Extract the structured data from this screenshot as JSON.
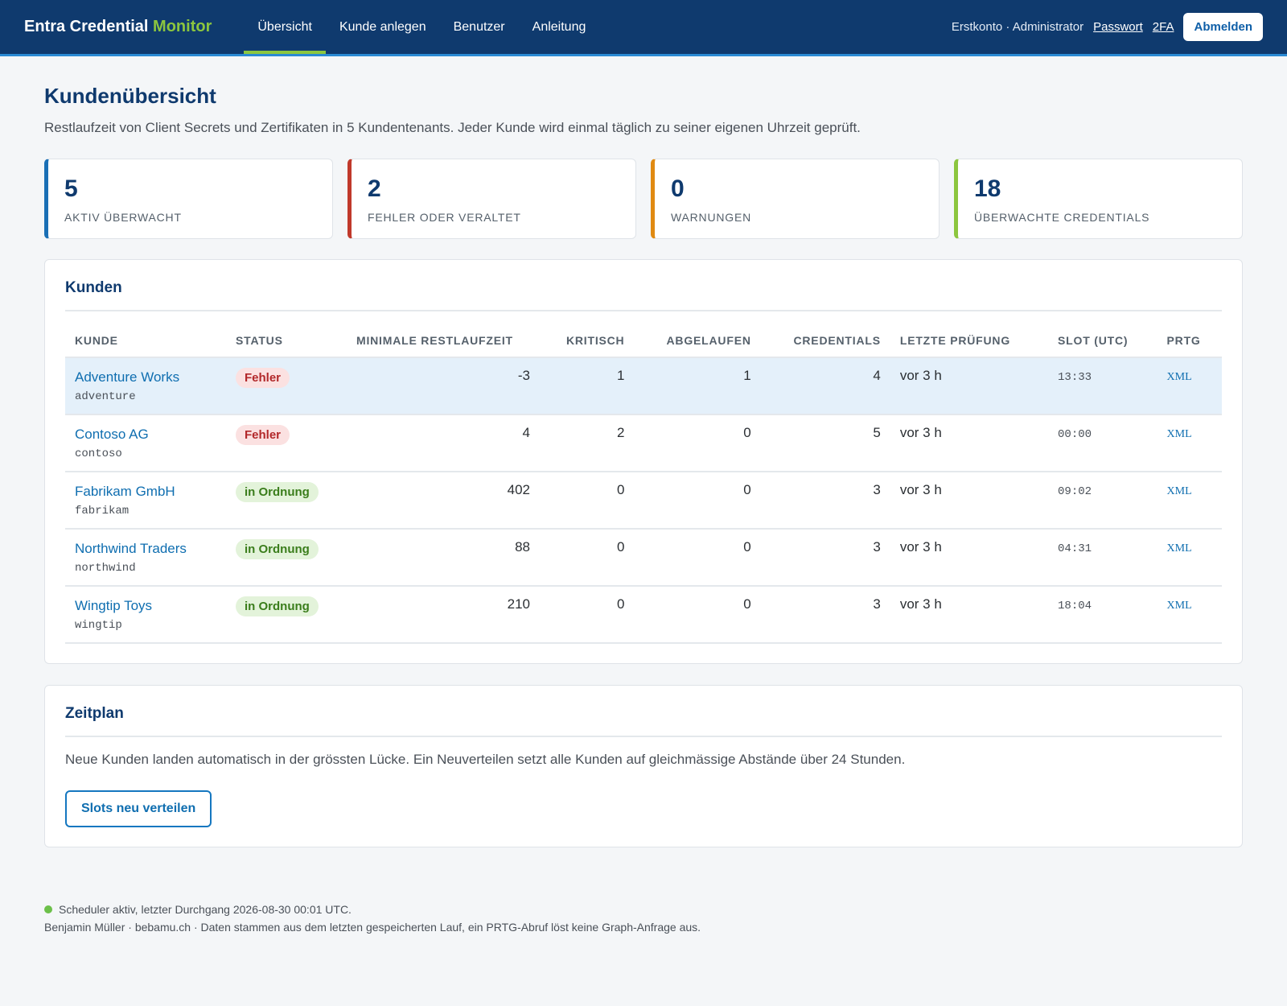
{
  "header": {
    "brand_main": "Entra Credential",
    "brand_accent": "Monitor",
    "nav": [
      {
        "label": "Übersicht",
        "active": true
      },
      {
        "label": "Kunde anlegen"
      },
      {
        "label": "Benutzer"
      },
      {
        "label": "Anleitung"
      }
    ],
    "account": "Erstkonto · Administrator",
    "password_link": "Passwort",
    "twofa_link": "2FA",
    "logout_label": "Abmelden"
  },
  "page": {
    "title": "Kundenübersicht",
    "description": "Restlaufzeit von Client Secrets und Zertifikaten in 5 Kundentenants. Jeder Kunde wird einmal täglich zu seiner eigenen Uhrzeit geprüft."
  },
  "stats": [
    {
      "value": "5",
      "label": "AKTIV ÜBERWACHT",
      "color": "#1a6fb5"
    },
    {
      "value": "2",
      "label": "FEHLER ODER VERALTET",
      "color": "#c0392b"
    },
    {
      "value": "0",
      "label": "WARNUNGEN",
      "color": "#e08a12"
    },
    {
      "value": "18",
      "label": "ÜBERWACHTE CREDENTIALS",
      "color": "#8cc63f"
    }
  ],
  "customers": {
    "title": "Kunden",
    "columns": [
      "KUNDE",
      "STATUS",
      "MINIMALE RESTLAUFZEIT",
      "KRITISCH",
      "ABGELAUFEN",
      "CREDENTIALS",
      "LETZTE PRÜFUNG",
      "SLOT (UTC)",
      "PRTG"
    ],
    "rows": [
      {
        "name": "Adventure Works",
        "id": "adventure",
        "status": "Fehler",
        "min_remaining": "-3",
        "critical": "1",
        "expired": "1",
        "credentials": "4",
        "last_check": "vor 3 h",
        "slot": "13:33",
        "prtg": "XML"
      },
      {
        "name": "Contoso AG",
        "id": "contoso",
        "status": "Fehler",
        "min_remaining": "4",
        "critical": "2",
        "expired": "0",
        "credentials": "5",
        "last_check": "vor 3 h",
        "slot": "00:00",
        "prtg": "XML"
      },
      {
        "name": "Fabrikam GmbH",
        "id": "fabrikam",
        "status": "in Ordnung",
        "min_remaining": "402",
        "critical": "0",
        "expired": "0",
        "credentials": "3",
        "last_check": "vor 3 h",
        "slot": "09:02",
        "prtg": "XML"
      },
      {
        "name": "Northwind Traders",
        "id": "northwind",
        "status": "in Ordnung",
        "min_remaining": "88",
        "critical": "0",
        "expired": "0",
        "credentials": "3",
        "last_check": "vor 3 h",
        "slot": "04:31",
        "prtg": "XML"
      },
      {
        "name": "Wingtip Toys",
        "id": "wingtip",
        "status": "in Ordnung",
        "min_remaining": "210",
        "critical": "0",
        "expired": "0",
        "credentials": "3",
        "last_check": "vor 3 h",
        "slot": "18:04",
        "prtg": "XML"
      }
    ]
  },
  "schedule": {
    "title": "Zeitplan",
    "text": "Neue Kunden landen automatisch in der grössten Lücke. Ein Neuverteilen setzt alle Kunden auf gleichmässige Abstände über 24 Stunden.",
    "button_label": "Slots neu verteilen"
  },
  "footer": {
    "scheduler_status": "Scheduler aktiv, letzter Durchgang 2026-08-30 00:01 UTC.",
    "credits": "Benjamin Müller · bebamu.ch · Daten stammen aus dem letzten gespeicherten Lauf, ein PRTG-Abruf löst keine Graph-Anfrage aus."
  }
}
